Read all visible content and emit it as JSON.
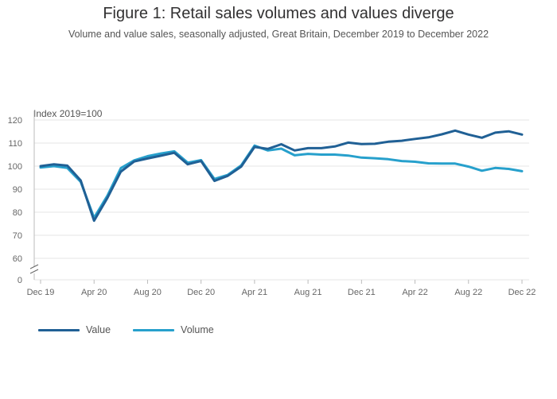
{
  "chart_data": {
    "type": "line",
    "title": "Figure 1: Retail sales volumes and values diverge",
    "subtitle": "Volume and value sales, seasonally adjusted, Great Britain, December 2019 to December 2022",
    "ylabel": "Index 2019=100",
    "xlabel": "",
    "ylim": [
      60,
      120
    ],
    "y_baseline_tick": 0,
    "axis_break": true,
    "yticks": [
      60,
      70,
      80,
      90,
      100,
      110,
      120
    ],
    "xtick_labels": [
      "Dec 19",
      "Apr 20",
      "Aug 20",
      "Dec 20",
      "Apr 21",
      "Aug 21",
      "Dec 21",
      "Apr 22",
      "Aug 22",
      "Dec 22"
    ],
    "x": [
      "Dec 19",
      "Jan 20",
      "Feb 20",
      "Mar 20",
      "Apr 20",
      "May 20",
      "Jun 20",
      "Jul 20",
      "Aug 20",
      "Sep 20",
      "Oct 20",
      "Nov 20",
      "Dec 20",
      "Jan 21",
      "Feb 21",
      "Mar 21",
      "Apr 21",
      "May 21",
      "Jun 21",
      "Jul 21",
      "Aug 21",
      "Sep 21",
      "Oct 21",
      "Nov 21",
      "Dec 21",
      "Jan 22",
      "Feb 22",
      "Mar 22",
      "Apr 22",
      "May 22",
      "Jun 22",
      "Jul 22",
      "Aug 22",
      "Sep 22",
      "Oct 22",
      "Nov 22",
      "Dec 22"
    ],
    "series": [
      {
        "name": "Value",
        "color": "#206095",
        "values": [
          100.0,
          100.8,
          100.2,
          93.8,
          76.3,
          86.2,
          97.6,
          102.0,
          103.3,
          104.5,
          105.8,
          100.8,
          102.2,
          93.6,
          95.8,
          99.8,
          108.3,
          107.5,
          109.5,
          106.8,
          107.8,
          107.8,
          108.5,
          110.2,
          109.6,
          109.7,
          110.6,
          111.0,
          111.8,
          112.5,
          113.8,
          115.4,
          113.7,
          112.3,
          114.5,
          115.1,
          113.7
        ]
      },
      {
        "name": "Volume",
        "color": "#27a0cc",
        "values": [
          99.4,
          100.0,
          99.2,
          93.2,
          77.6,
          87.2,
          99.1,
          102.5,
          104.3,
          105.5,
          106.4,
          101.5,
          102.6,
          94.4,
          96.2,
          100.3,
          108.9,
          106.8,
          107.6,
          104.7,
          105.3,
          105.0,
          105.0,
          104.6,
          103.7,
          103.4,
          103.0,
          102.2,
          101.9,
          101.2,
          101.1,
          101.1,
          99.8,
          98.0,
          99.2,
          98.8,
          97.8
        ]
      }
    ],
    "legend": "bottom-left"
  }
}
